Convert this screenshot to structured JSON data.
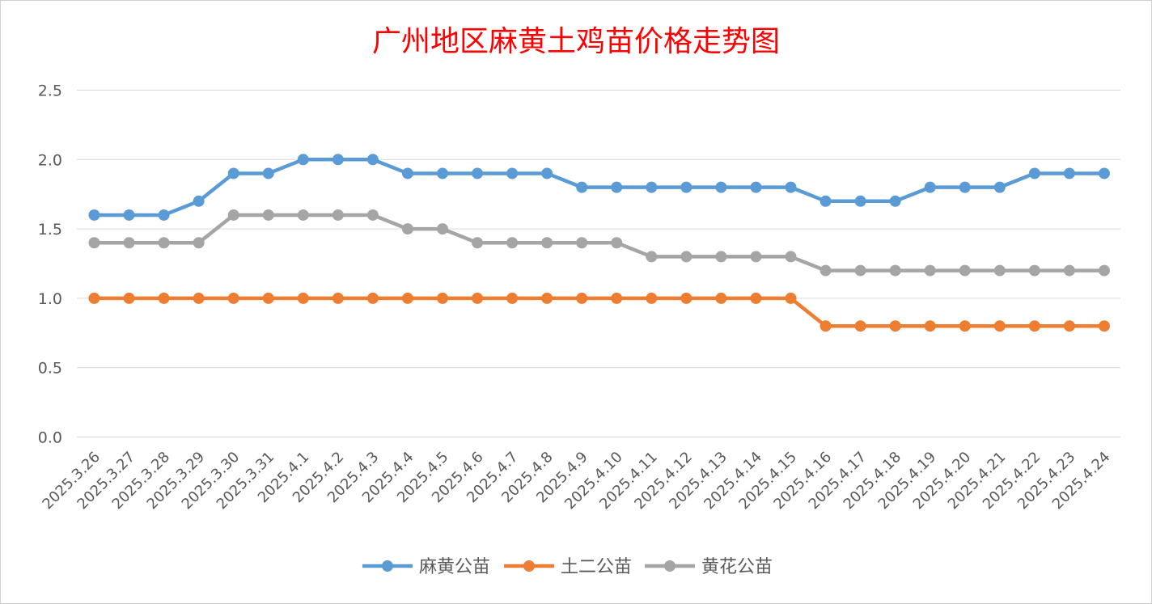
{
  "chart_data": {
    "type": "line",
    "title": "广州地区麻黄土鸡苗价格走势图",
    "xlabel": "",
    "ylabel": "",
    "ylim": [
      0,
      2.5
    ],
    "yticks": [
      "0.0",
      "0.5",
      "1.0",
      "1.5",
      "2.0",
      "2.5"
    ],
    "grid": "horizontal",
    "legend": "bottom",
    "categories": [
      "2025.3.26",
      "2025.3.27",
      "2025.3.28",
      "2025.3.29",
      "2025.3.30",
      "2025.3.31",
      "2025.4.1",
      "2025.4.2",
      "2025.4.3",
      "2025.4.4",
      "2025.4.5",
      "2025.4.6",
      "2025.4.7",
      "2025.4.8",
      "2025.4.9",
      "2025.4.10",
      "2025.4.11",
      "2025.4.12",
      "2025.4.13",
      "2025.4.14",
      "2025.4.15",
      "2025.4.16",
      "2025.4.17",
      "2025.4.18",
      "2025.4.19",
      "2025.4.20",
      "2025.4.21",
      "2025.4.22",
      "2025.4.23",
      "2025.4.24"
    ],
    "series": [
      {
        "name": "麻黄公苗",
        "color": "#5b9bd5",
        "values": [
          1.6,
          1.6,
          1.6,
          1.7,
          1.9,
          1.9,
          2.0,
          2.0,
          2.0,
          1.9,
          1.9,
          1.9,
          1.9,
          1.9,
          1.8,
          1.8,
          1.8,
          1.8,
          1.8,
          1.8,
          1.8,
          1.7,
          1.7,
          1.7,
          1.8,
          1.8,
          1.8,
          1.9,
          1.9,
          1.9
        ]
      },
      {
        "name": "土二公苗",
        "color": "#ed7d31",
        "values": [
          1.0,
          1.0,
          1.0,
          1.0,
          1.0,
          1.0,
          1.0,
          1.0,
          1.0,
          1.0,
          1.0,
          1.0,
          1.0,
          1.0,
          1.0,
          1.0,
          1.0,
          1.0,
          1.0,
          1.0,
          1.0,
          0.8,
          0.8,
          0.8,
          0.8,
          0.8,
          0.8,
          0.8,
          0.8,
          0.8
        ]
      },
      {
        "name": "黄花公苗",
        "color": "#a5a5a5",
        "values": [
          1.4,
          1.4,
          1.4,
          1.4,
          1.6,
          1.6,
          1.6,
          1.6,
          1.6,
          1.5,
          1.5,
          1.4,
          1.4,
          1.4,
          1.4,
          1.4,
          1.3,
          1.3,
          1.3,
          1.3,
          1.3,
          1.2,
          1.2,
          1.2,
          1.2,
          1.2,
          1.2,
          1.2,
          1.2,
          1.2
        ]
      }
    ]
  }
}
